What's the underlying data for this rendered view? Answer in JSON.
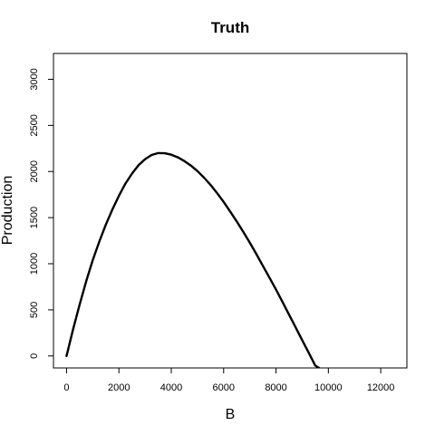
{
  "chart_data": {
    "type": "line",
    "title": "Truth",
    "xlabel": "B",
    "ylabel": "Production",
    "xlim": [
      -500,
      13000
    ],
    "ylim": [
      -130,
      3280
    ],
    "xticks": [
      0,
      2000,
      4000,
      6000,
      8000,
      10000,
      12000
    ],
    "xtick_labels": [
      "0",
      "2000",
      "4000",
      "6000",
      "8000",
      "10000",
      "12000"
    ],
    "yticks": [
      0,
      500,
      1000,
      1500,
      2000,
      2500,
      3000
    ],
    "ytick_labels": [
      "0",
      "500",
      "1000",
      "1500",
      "2000",
      "2500",
      "3000"
    ],
    "grid": false,
    "series": [
      {
        "x": [
          0,
          250,
          500,
          750,
          1000,
          1250,
          1500,
          1750,
          2000,
          2250,
          2500,
          2750,
          3000,
          3250,
          3500,
          3750,
          4000,
          4250,
          4500,
          4750,
          5000,
          5250,
          5500,
          5750,
          6000,
          6250,
          6500,
          6750,
          7000,
          7250,
          7500,
          7750,
          8000,
          8250,
          8500,
          8750,
          9000,
          9250,
          9500,
          9750,
          10000,
          10200
        ],
        "y": [
          0,
          291,
          558,
          809,
          1038,
          1241,
          1425,
          1588,
          1736,
          1869,
          1978,
          2068,
          2134,
          2179,
          2200,
          2198,
          2182,
          2154,
          2114,
          2064,
          2004,
          1934,
          1855,
          1766,
          1670,
          1566,
          1459,
          1346,
          1227,
          1104,
          977,
          850,
          719,
          584,
          447,
          310,
          172,
          34,
          -104,
          -150,
          -150,
          -150
        ]
      }
    ]
  }
}
